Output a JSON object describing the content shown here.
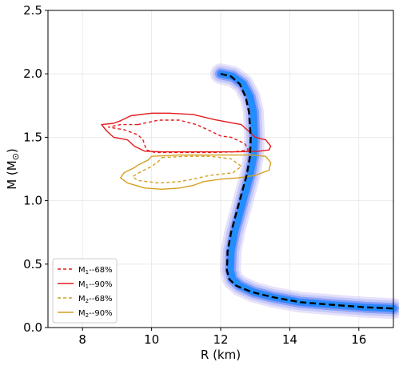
{
  "chart_data": {
    "type": "line",
    "title": "",
    "xlabel": "R (km)",
    "ylabel_main": "M (M",
    "ylabel_sub": "⊙",
    "ylabel_close": ")",
    "xlim": [
      7,
      17
    ],
    "ylim": [
      0,
      2.5
    ],
    "xticks": [
      8,
      10,
      12,
      14,
      16
    ],
    "xtick_labels": [
      "8",
      "10",
      "12",
      "14",
      "16"
    ],
    "yticks": [
      0,
      0.5,
      1.0,
      1.5,
      2.0,
      2.5
    ],
    "ytick_labels": [
      "0.0",
      "0.5",
      "1.0",
      "1.5",
      "2.0",
      "2.5"
    ],
    "grid": true,
    "legend_position": "lower-left",
    "legend": [
      {
        "label_main": "M",
        "label_sub": "1",
        "label_rest": "--68%",
        "color": "#e41a1c",
        "dash": true
      },
      {
        "label_main": "M",
        "label_sub": "1",
        "label_rest": "--90%",
        "color": "#e41a1c",
        "dash": false
      },
      {
        "label_main": "M",
        "label_sub": "2",
        "label_rest": "--68%",
        "color": "#d4a020",
        "dash": true
      },
      {
        "label_main": "M",
        "label_sub": "2",
        "label_rest": "--90%",
        "color": "#d4a020",
        "dash": false
      }
    ],
    "series": [
      {
        "kind": "mass-radius-curve",
        "color": "#000000",
        "style": "dashed",
        "x": [
          12.0,
          12.3,
          12.55,
          12.72,
          12.82,
          12.87,
          12.85,
          12.75,
          12.6,
          12.45,
          12.3,
          12.2,
          12.18,
          12.25,
          12.45,
          12.9,
          13.5,
          14.3,
          15.2,
          16.2,
          17.0
        ],
        "y": [
          2.0,
          1.98,
          1.92,
          1.82,
          1.7,
          1.5,
          1.35,
          1.2,
          1.05,
          0.9,
          0.75,
          0.6,
          0.45,
          0.38,
          0.33,
          0.28,
          0.24,
          0.2,
          0.18,
          0.16,
          0.15
        ]
      },
      {
        "kind": "posterior-band",
        "color": "#2a7fff",
        "x": [
          12.0,
          12.35,
          12.65,
          12.85,
          12.95,
          12.98,
          12.95,
          12.85,
          12.7,
          12.55,
          12.4,
          12.3,
          12.28,
          12.35,
          12.55,
          12.95,
          13.5,
          14.3,
          15.2,
          16.2,
          17.0
        ],
        "y": [
          2.0,
          1.98,
          1.92,
          1.82,
          1.7,
          1.5,
          1.35,
          1.2,
          1.05,
          0.9,
          0.75,
          0.6,
          0.45,
          0.38,
          0.33,
          0.28,
          0.24,
          0.2,
          0.18,
          0.16,
          0.15
        ]
      },
      {
        "kind": "contour",
        "name": "M1--90%",
        "color": "#e41a1c",
        "style": "solid",
        "x": [
          9.4,
          10.0,
          10.5,
          11.2,
          11.8,
          12.2,
          12.6,
          12.8,
          13.0,
          13.3,
          13.45,
          13.4,
          13.1,
          12.5,
          11.8,
          11.0,
          10.3,
          9.8,
          9.5,
          9.3,
          8.9,
          8.7,
          8.55,
          8.9,
          9.1,
          9.4
        ],
        "y": [
          1.67,
          1.69,
          1.69,
          1.68,
          1.64,
          1.62,
          1.6,
          1.55,
          1.5,
          1.48,
          1.43,
          1.4,
          1.39,
          1.385,
          1.385,
          1.385,
          1.385,
          1.39,
          1.43,
          1.48,
          1.5,
          1.55,
          1.6,
          1.61,
          1.63,
          1.67
        ]
      },
      {
        "kind": "contour",
        "name": "M1--68%",
        "color": "#e41a1c",
        "style": "dashed",
        "x": [
          9.6,
          10.2,
          10.8,
          11.3,
          11.7,
          12.0,
          12.3,
          12.7,
          12.8,
          12.4,
          11.8,
          11.1,
          10.5,
          10.1,
          9.85,
          9.75,
          9.6,
          9.2,
          8.75,
          9.1,
          9.6
        ],
        "y": [
          1.6,
          1.635,
          1.635,
          1.6,
          1.55,
          1.51,
          1.5,
          1.45,
          1.4,
          1.385,
          1.38,
          1.38,
          1.38,
          1.38,
          1.4,
          1.48,
          1.52,
          1.56,
          1.58,
          1.6,
          1.6
        ]
      },
      {
        "kind": "contour",
        "name": "M2--90%",
        "color": "#d4a020",
        "style": "solid",
        "x": [
          10.0,
          10.8,
          11.6,
          12.3,
          12.9,
          13.3,
          13.45,
          13.4,
          13.0,
          12.5,
          12.0,
          11.5,
          11.2,
          10.8,
          10.3,
          9.8,
          9.3,
          9.1,
          9.2,
          9.5,
          9.6,
          9.9,
          10.0
        ],
        "y": [
          1.35,
          1.36,
          1.36,
          1.36,
          1.36,
          1.35,
          1.3,
          1.24,
          1.2,
          1.18,
          1.17,
          1.15,
          1.12,
          1.1,
          1.09,
          1.1,
          1.14,
          1.18,
          1.22,
          1.26,
          1.28,
          1.32,
          1.35
        ]
      },
      {
        "kind": "contour",
        "name": "M2--68%",
        "color": "#d4a020",
        "style": "dashed",
        "x": [
          10.3,
          11.0,
          11.7,
          12.3,
          12.6,
          12.35,
          11.7,
          11.2,
          10.8,
          10.2,
          9.6,
          9.45,
          9.7,
          10.0,
          10.2,
          10.3
        ],
        "y": [
          1.34,
          1.35,
          1.35,
          1.33,
          1.27,
          1.22,
          1.2,
          1.17,
          1.15,
          1.14,
          1.16,
          1.19,
          1.23,
          1.27,
          1.31,
          1.34
        ]
      }
    ]
  }
}
